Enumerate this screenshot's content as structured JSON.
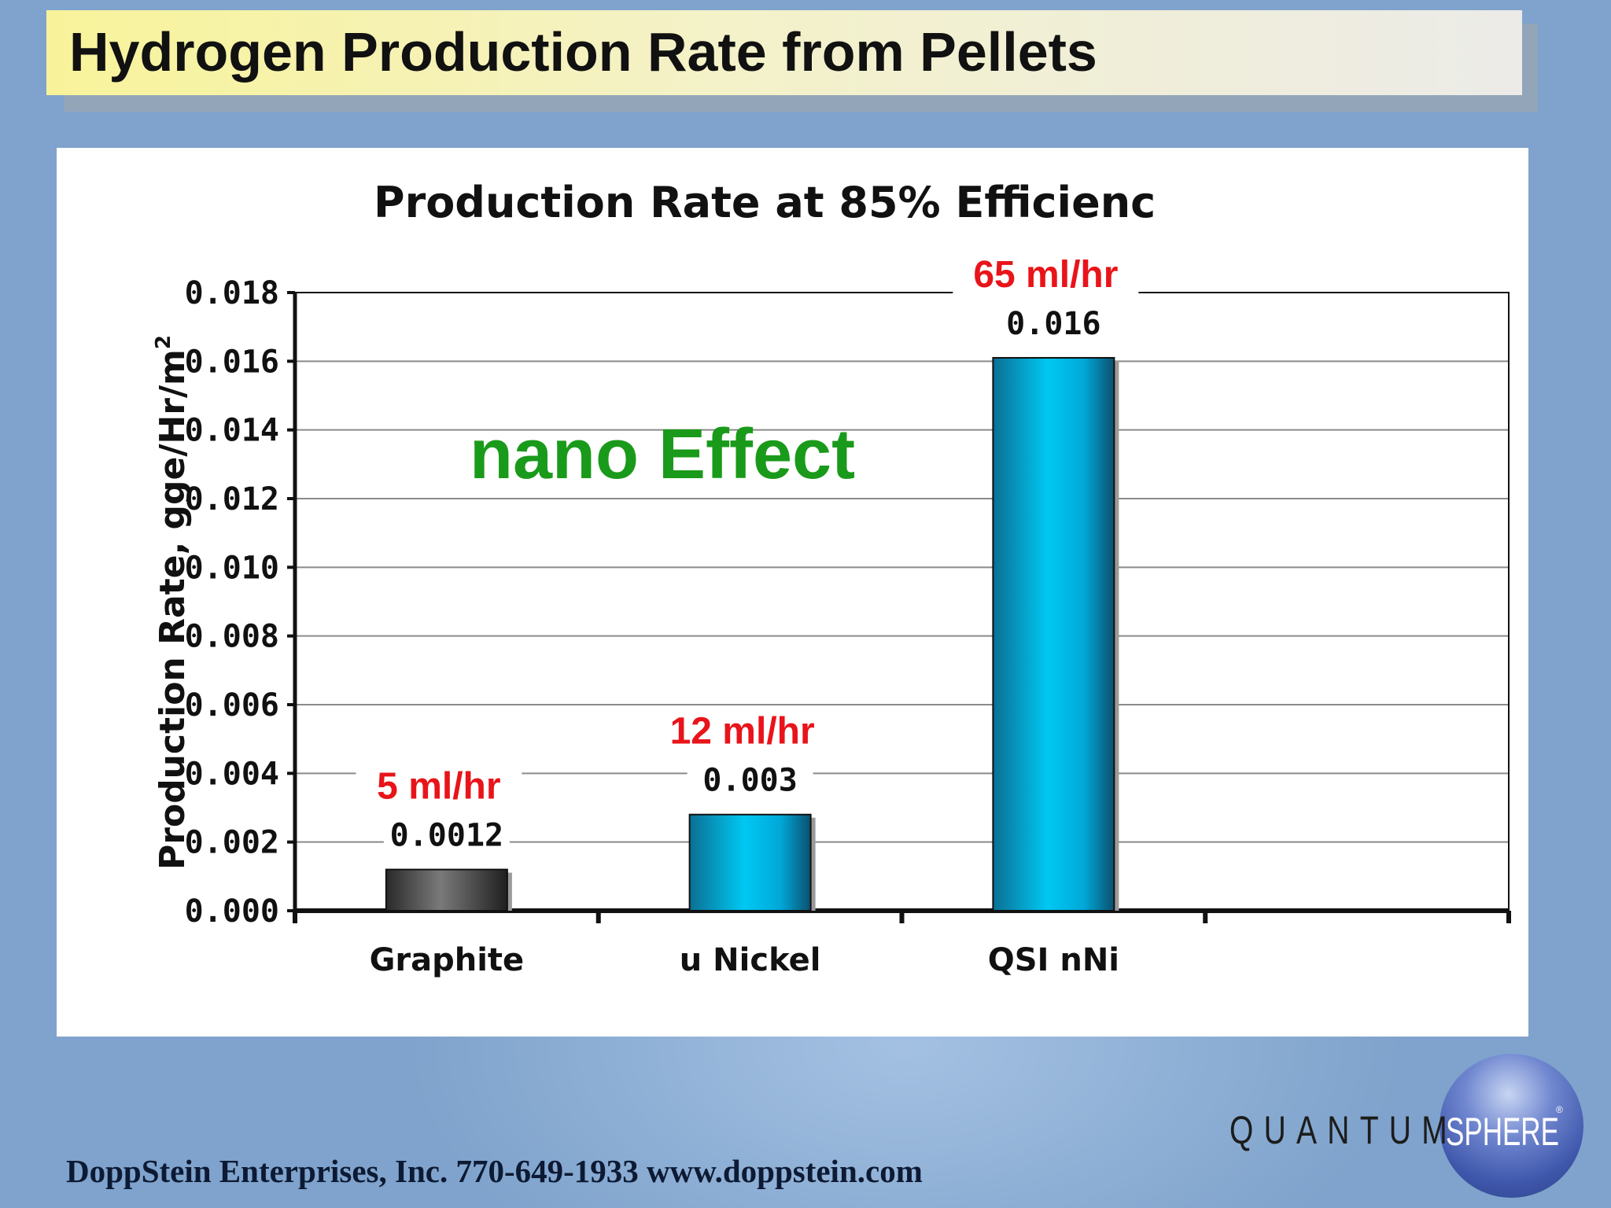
{
  "slide": {
    "title": "Hydrogen Production Rate from Pellets",
    "footer": "DoppStein Enterprises, Inc. 770-649-1933 www.doppstein.com",
    "logo": {
      "text_left": "QUANTUM",
      "text_right": "SPHERE",
      "mark": "®"
    },
    "colors": {
      "background": "#7fa3cc",
      "title_band": "#f8f39a",
      "annotation_red": "#e8141a",
      "nano_green": "#1a9a1a",
      "bar_graphite": "#3c3c3c",
      "bar_blue": "#00c4ee"
    }
  },
  "chart_data": {
    "type": "bar",
    "title": "Production Rate at 85% Efficienc",
    "xlabel": "",
    "ylabel": "Production Rate, gge/Hr/m",
    "ylabel_superscript": "2",
    "ylim": [
      0,
      0.018
    ],
    "yticks": [
      "0.000",
      "0.002",
      "0.004",
      "0.006",
      "0.008",
      "0.010",
      "0.012",
      "0.014",
      "0.016",
      "0.018"
    ],
    "grid": true,
    "categories": [
      "Graphite",
      "u Nickel",
      "QSI nNi"
    ],
    "values": [
      0.0012,
      0.0028,
      0.0161
    ],
    "data_labels": [
      "0.0012",
      "0.003",
      "0.016"
    ],
    "rate_labels": [
      "5 ml/hr",
      "12 ml/hr",
      "65 ml/hr"
    ],
    "annotation": "nano Effect"
  }
}
